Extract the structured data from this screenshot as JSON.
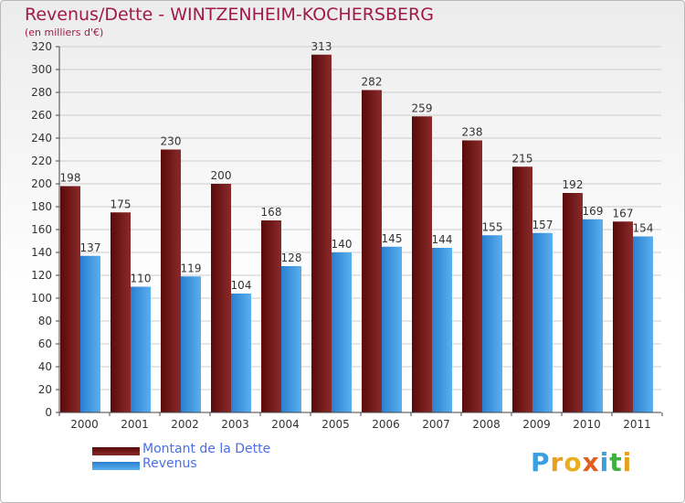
{
  "title": "Revenus/Dette - WINTZENHEIM-KOCHERSBERG",
  "subtitle": "(en milliers d'€)",
  "logo": {
    "text": "Proxiti",
    "letters": [
      "P",
      "r",
      "o",
      "x",
      "i",
      "t",
      "i"
    ],
    "colors": [
      "#3aa0e0",
      "#e8a020",
      "#e8b020",
      "#e06020",
      "#3aa0e0",
      "#40b040",
      "#e8a020"
    ]
  },
  "colors": {
    "title": "#a0194a",
    "dette_dark": "#5a0a0a",
    "dette_light": "#8a2a2a",
    "revenus_dark": "#2a80d0",
    "revenus_light": "#5ab0ee",
    "grid": "#cccccc",
    "axis": "#444444",
    "label": "#333333"
  },
  "chart_data": {
    "type": "bar",
    "title": "Revenus/Dette - WINTZENHEIM-KOCHERSBERG",
    "subtitle": "(en milliers d'€)",
    "categories": [
      "2000",
      "2001",
      "2002",
      "2003",
      "2004",
      "2005",
      "2006",
      "2007",
      "2008",
      "2009",
      "2010",
      "2011"
    ],
    "series": [
      {
        "name": "Montant de la Dette",
        "values": [
          198,
          175,
          230,
          200,
          168,
          313,
          282,
          259,
          238,
          215,
          192,
          167
        ]
      },
      {
        "name": "Revenus",
        "values": [
          137,
          110,
          119,
          104,
          128,
          140,
          145,
          144,
          155,
          157,
          169,
          154
        ]
      }
    ],
    "ylim": [
      0,
      320
    ],
    "yticks": [
      0,
      20,
      40,
      60,
      80,
      100,
      120,
      140,
      160,
      180,
      200,
      220,
      240,
      260,
      280,
      300,
      320
    ],
    "grid": true,
    "legend": "bottom-left"
  }
}
